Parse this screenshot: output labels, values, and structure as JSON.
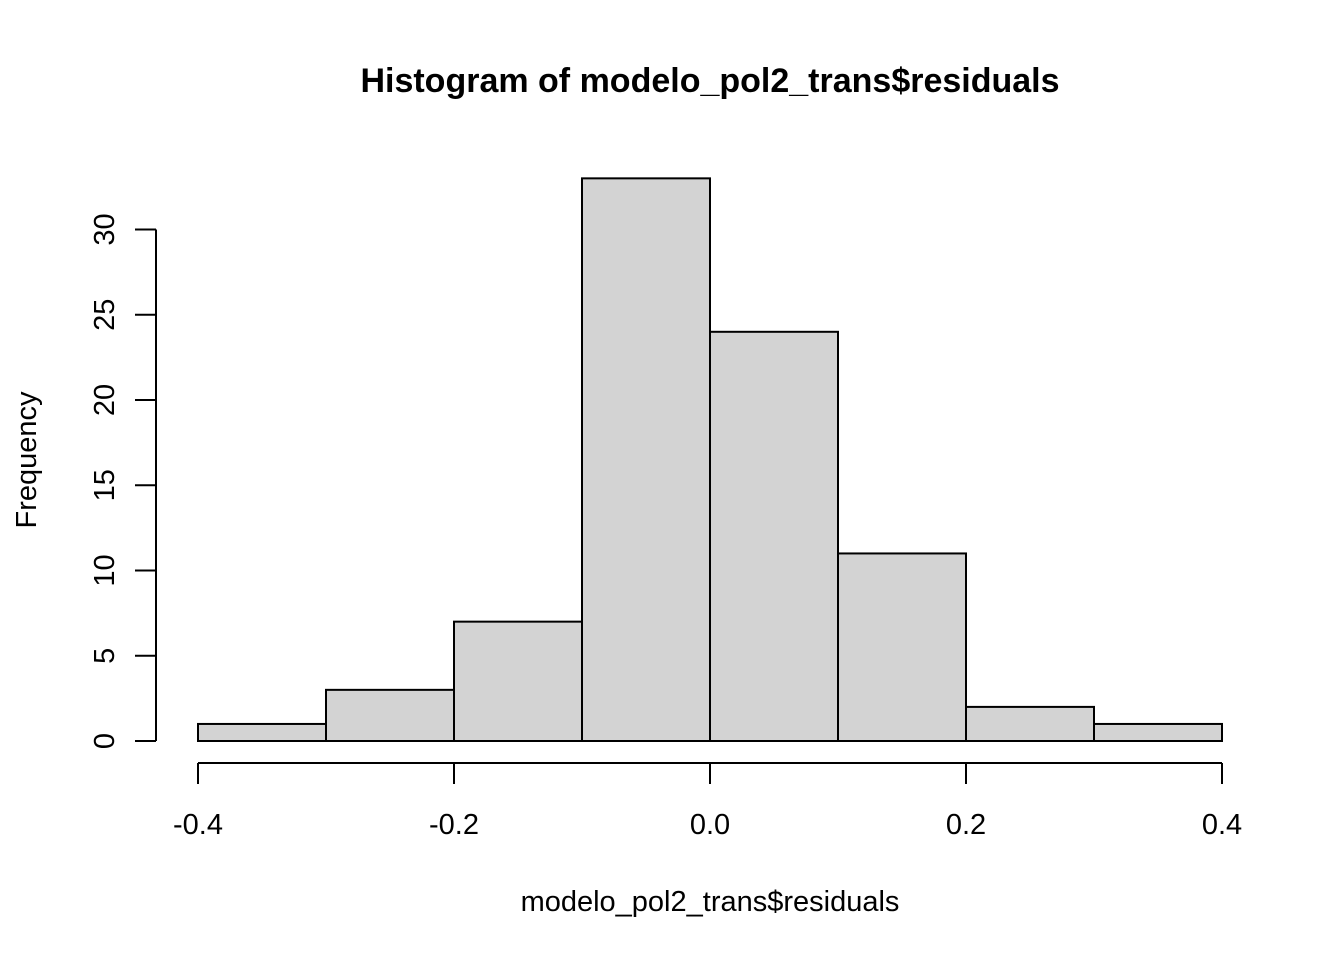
{
  "chart_data": {
    "type": "bar",
    "title": "Histogram of modelo_pol2_trans$residuals",
    "xlabel": "modelo_pol2_trans$residuals",
    "ylabel": "Frequency",
    "bins": [
      {
        "x0": -0.4,
        "x1": -0.3,
        "count": 1
      },
      {
        "x0": -0.3,
        "x1": -0.2,
        "count": 3
      },
      {
        "x0": -0.2,
        "x1": -0.1,
        "count": 7
      },
      {
        "x0": -0.1,
        "x1": 0.0,
        "count": 33
      },
      {
        "x0": 0.0,
        "x1": 0.1,
        "count": 24
      },
      {
        "x0": 0.1,
        "x1": 0.2,
        "count": 11
      },
      {
        "x0": 0.2,
        "x1": 0.3,
        "count": 2
      },
      {
        "x0": 0.3,
        "x1": 0.4,
        "count": 1
      }
    ],
    "xlim": [
      -0.4,
      0.4
    ],
    "ylim": [
      0,
      33
    ],
    "x_ticks": [
      -0.4,
      -0.2,
      0.0,
      0.2,
      0.4
    ],
    "x_tick_labels": [
      "-0.4",
      "-0.2",
      "0.0",
      "0.2",
      "0.4"
    ],
    "y_ticks": [
      0,
      5,
      10,
      15,
      20,
      25,
      30
    ],
    "y_tick_labels": [
      "0",
      "5",
      "10",
      "15",
      "20",
      "25",
      "30"
    ],
    "grid": false,
    "colors": {
      "bar_fill": "#d3d3d3",
      "bar_stroke": "#000000"
    }
  }
}
